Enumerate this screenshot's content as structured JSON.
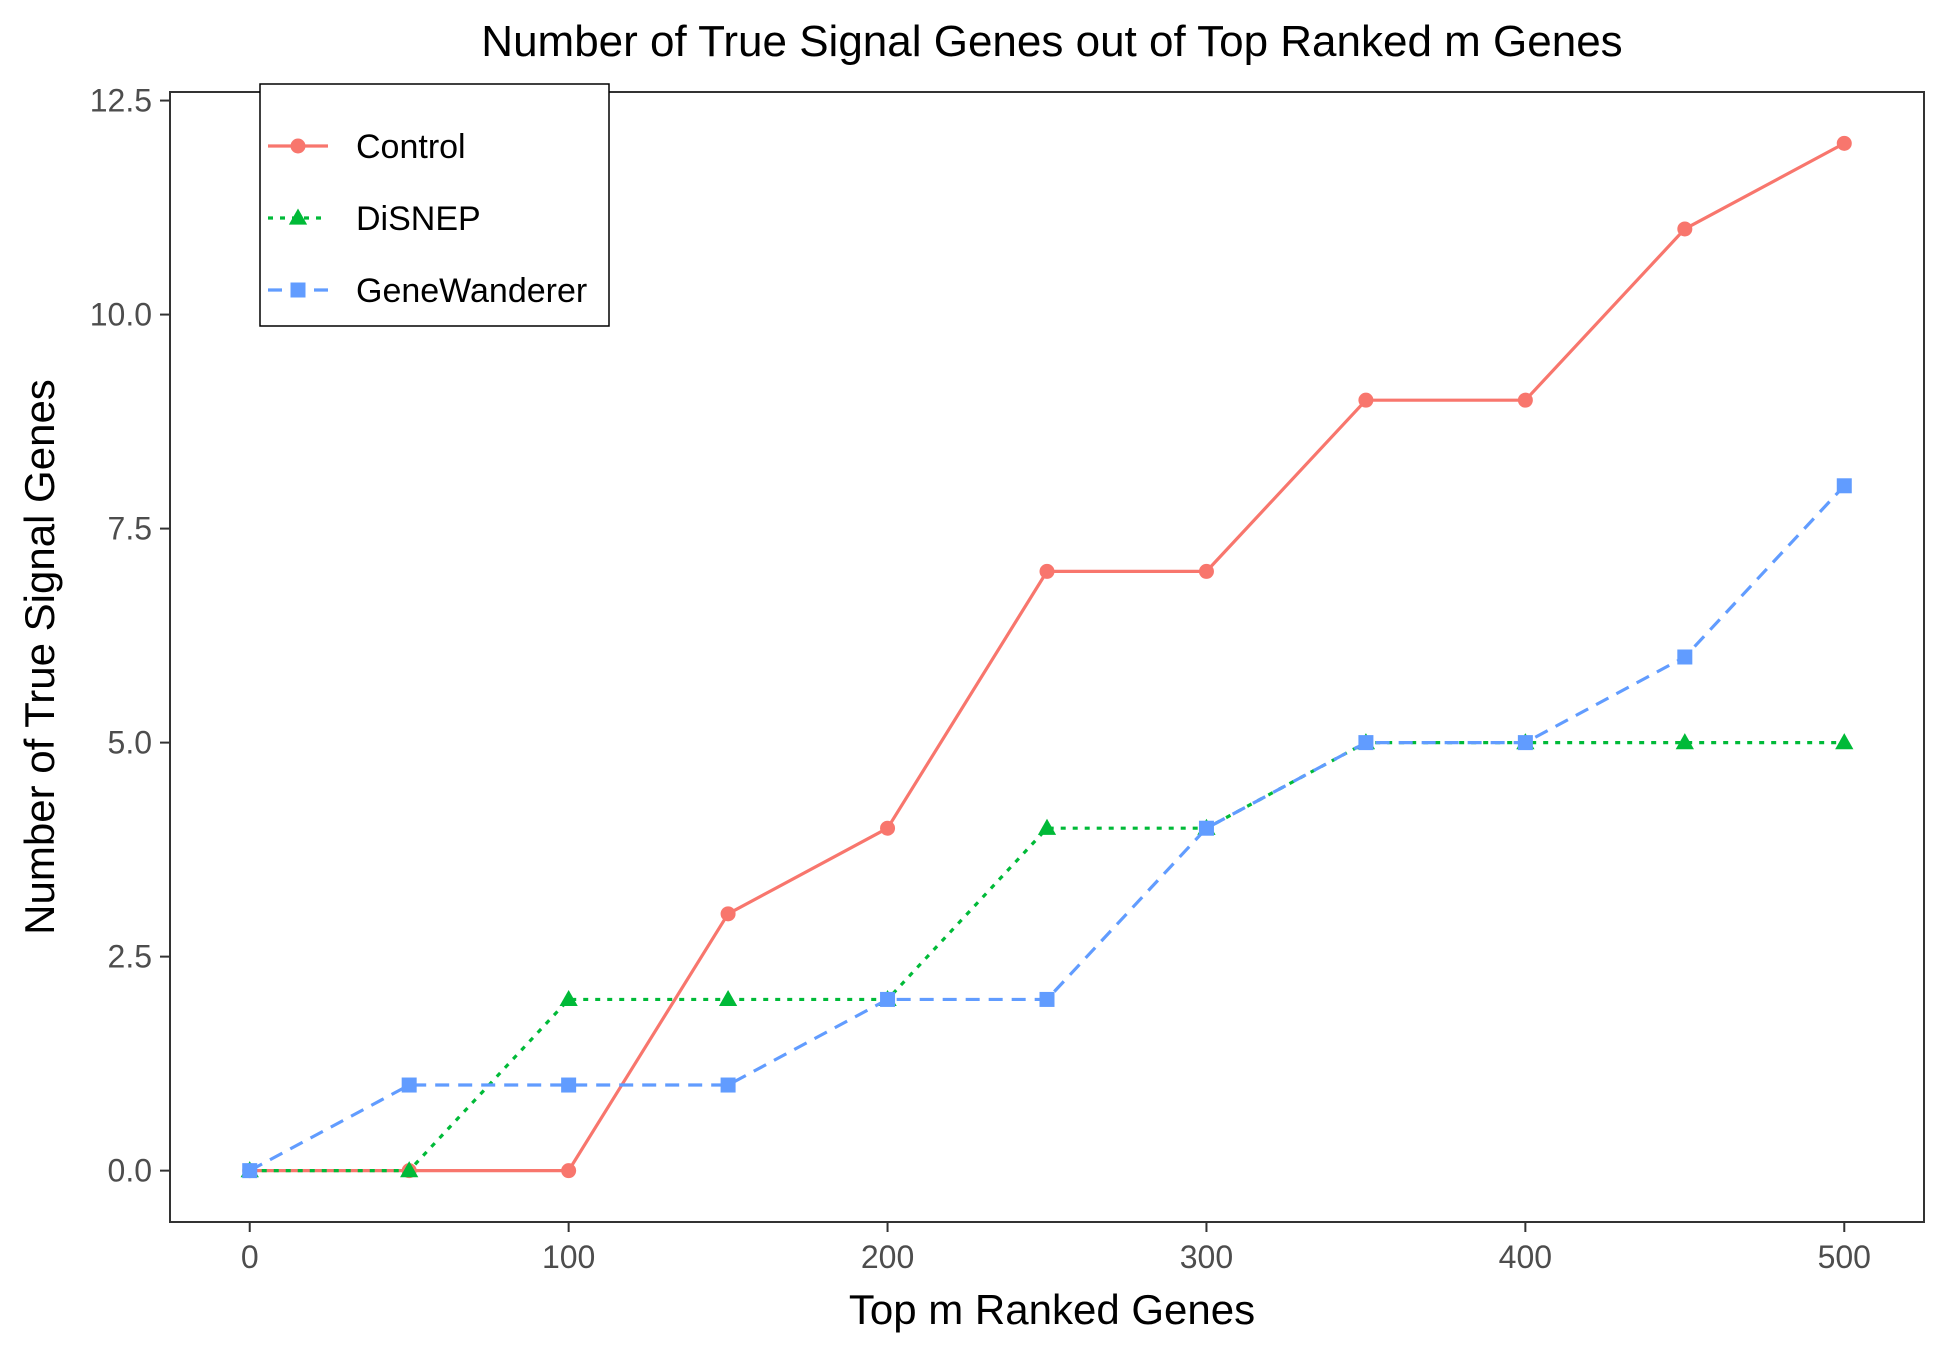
{
  "chart_data": {
    "type": "line",
    "title": "Number of True Signal Genes out of Top Ranked m Genes",
    "xlabel": "Top m Ranked Genes",
    "ylabel": "Number of True Signal Genes",
    "x": [
      0,
      50,
      100,
      150,
      200,
      250,
      300,
      350,
      400,
      450,
      500
    ],
    "xlim": [
      -25,
      525
    ],
    "ylim": [
      -0.6,
      12.6
    ],
    "xticks": [
      0,
      100,
      200,
      300,
      400,
      500
    ],
    "xtick_labels": [
      "0",
      "100",
      "200",
      "300",
      "400",
      "500"
    ],
    "yticks": [
      0,
      2.5,
      5,
      7.5,
      10,
      12.5
    ],
    "ytick_labels": [
      "0.0",
      "2.5",
      "5.0",
      "7.5",
      "10.0",
      "12.5"
    ],
    "grid": false,
    "legend_position": "top-left",
    "series": [
      {
        "name": "Control",
        "color": "#F8766D",
        "marker": "circle",
        "line": "solid",
        "values": [
          0,
          0,
          0,
          3,
          4,
          7,
          7,
          9,
          9,
          11,
          12
        ]
      },
      {
        "name": "DiSNEP",
        "color": "#00BA38",
        "marker": "triangle",
        "line": "dotted",
        "values": [
          0,
          0,
          2,
          2,
          2,
          4,
          4,
          5,
          5,
          5,
          5
        ]
      },
      {
        "name": "GeneWanderer",
        "color": "#619CFF",
        "marker": "square",
        "line": "dashed",
        "values": [
          0,
          1,
          1,
          1,
          2,
          2,
          4,
          5,
          5,
          6,
          8
        ]
      }
    ]
  }
}
